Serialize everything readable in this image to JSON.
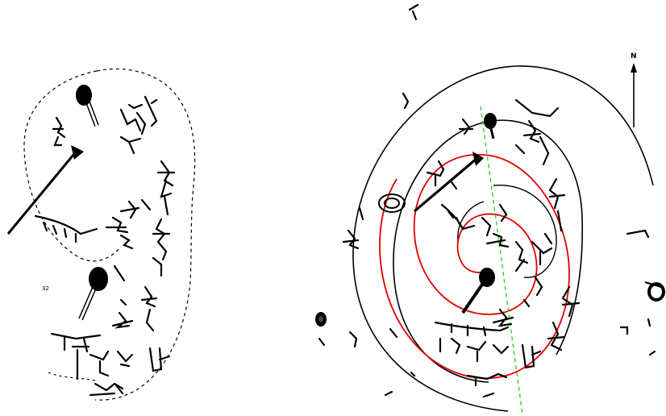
{
  "left_panel": {
    "page_number": "32"
  },
  "right_panel": {
    "north_label": "N"
  },
  "colors": {
    "ink": "#000000",
    "spiral_red": "#e00000",
    "axis_green": "#22cc22",
    "background": "#ffffff"
  }
}
